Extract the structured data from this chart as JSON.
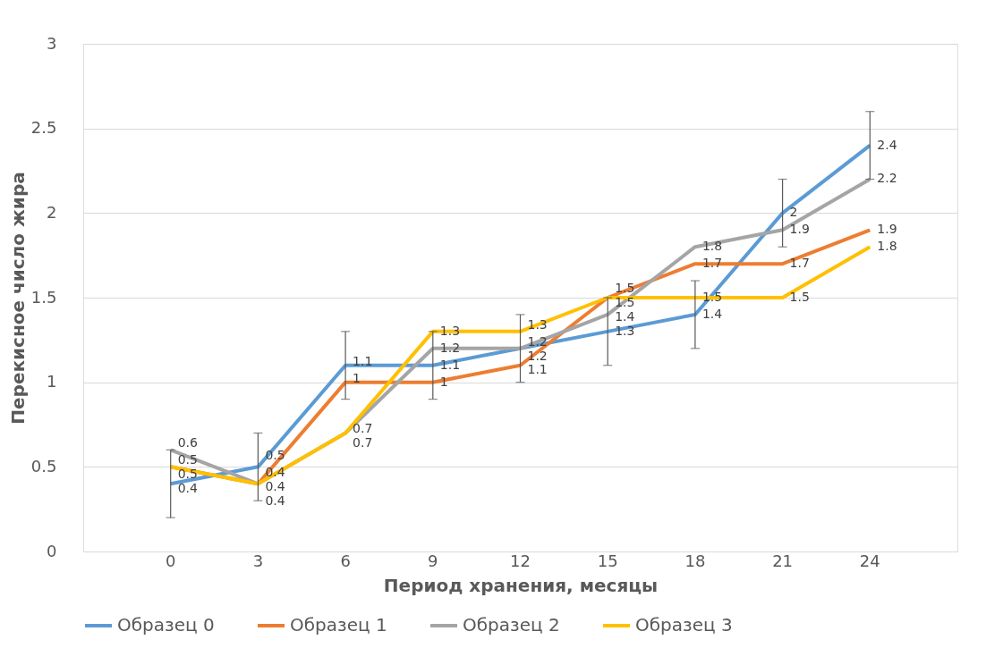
{
  "chart_data": {
    "type": "line",
    "xlabel": "Период хранения, месяцы",
    "ylabel": "Перекисное число жира",
    "categories": [
      "0",
      "3",
      "6",
      "9",
      "12",
      "15",
      "18",
      "21",
      "24"
    ],
    "series": [
      {
        "name": "Образец 0",
        "color": "#5b9bd5",
        "values": [
          0.4,
          0.5,
          1.1,
          1.1,
          1.2,
          1.3,
          1.4,
          2.0,
          2.4
        ],
        "errors": [
          0.2,
          0.2,
          0.2,
          0.2,
          0.2,
          0.2,
          0.2,
          0.2,
          0.2
        ]
      },
      {
        "name": "Образец 1",
        "color": "#ed7d31",
        "values": [
          0.5,
          0.4,
          1.0,
          1.0,
          1.1,
          1.5,
          1.7,
          1.7,
          1.9
        ]
      },
      {
        "name": "Образец 2",
        "color": "#a5a5a5",
        "values": [
          0.6,
          0.4,
          0.7,
          1.2,
          1.2,
          1.4,
          1.8,
          1.9,
          2.2
        ]
      },
      {
        "name": "Образец 3",
        "color": "#ffc000",
        "values": [
          0.5,
          0.4,
          0.7,
          1.3,
          1.3,
          1.5,
          1.5,
          1.5,
          1.8
        ]
      }
    ],
    "ylim": [
      0,
      3
    ],
    "yticks": [
      0,
      0.5,
      1,
      1.5,
      2,
      2.5,
      3
    ],
    "grid": "y",
    "legend": "bottom",
    "marker": "none",
    "line_style": "solid",
    "data_labels": true
  }
}
